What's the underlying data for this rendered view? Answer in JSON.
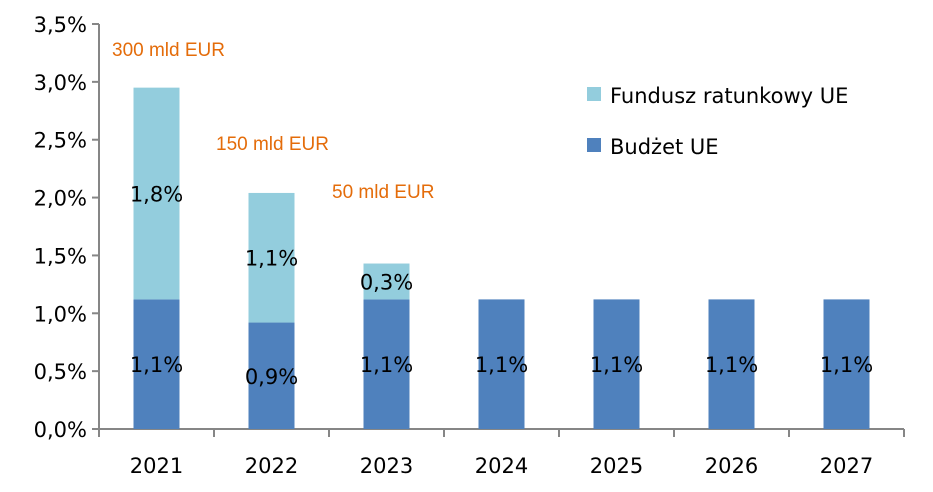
{
  "chart_data": {
    "type": "bar",
    "stacked": true,
    "categories": [
      "2021",
      "2022",
      "2023",
      "2024",
      "2025",
      "2026",
      "2027"
    ],
    "series": [
      {
        "name": "Budżet UE",
        "color": "#4F81BD",
        "values": [
          1.12,
          0.92,
          1.12,
          1.12,
          1.12,
          1.12,
          1.12
        ],
        "labels": [
          "1,1%",
          "0,9%",
          "1,1%",
          "1,1%",
          "1,1%",
          "1,1%",
          "1,1%"
        ]
      },
      {
        "name": "Fundusz ratunkowy UE",
        "color": "#93CDDD",
        "values": [
          1.83,
          1.12,
          0.31,
          0,
          0,
          0,
          0
        ],
        "labels": [
          "1,8%",
          "1,1%",
          "0,3%",
          "",
          "",
          "",
          ""
        ]
      }
    ],
    "annotations": [
      "300 mld EUR",
      "150 mld EUR",
      "50 mld EUR"
    ],
    "annotation_color": "#E46C0A",
    "ylim": [
      0,
      3.5
    ],
    "yticks": [
      "0,0%",
      "0,5%",
      "1,0%",
      "1,5%",
      "2,0%",
      "2,5%",
      "3,0%",
      "3,5%"
    ],
    "grid": false,
    "legend_position": "top-right",
    "title": "",
    "xlabel": "",
    "ylabel": ""
  }
}
